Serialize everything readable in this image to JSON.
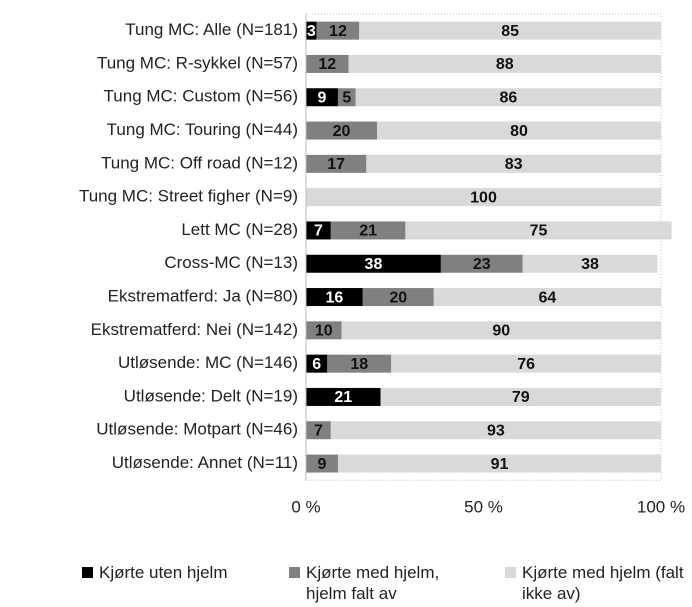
{
  "chart_data": {
    "type": "stacked_bar_horizontal",
    "categories": [
      "Tung MC: Alle (N=181)",
      "Tung MC: R-sykkel (N=57)",
      "Tung MC: Custom (N=56)",
      "Tung MC: Touring (N=44)",
      "Tung MC: Off road (N=12)",
      "Tung MC: Street figher (N=9)",
      "Lett MC (N=28)",
      "Cross-MC (N=13)",
      "Ekstrematferd: Ja (N=80)",
      "Ekstrematferd: Nei (N=142)",
      "Utløsende: MC (N=146)",
      "Utløsende: Delt (N=19)",
      "Utløsende: Motpart (N=46)",
      "Utløsende: Annet (N=11)"
    ],
    "series": [
      {
        "name": "Kjørte uten hjelm",
        "color": "#000000",
        "values": [
          3,
          0,
          9,
          0,
          0,
          0,
          7,
          38,
          16,
          0,
          6,
          21,
          0,
          0
        ]
      },
      {
        "name": "Kjørte med hjelm, hjelm falt av",
        "color": "#808080",
        "values": [
          12,
          12,
          5,
          20,
          17,
          0,
          21,
          23,
          20,
          10,
          18,
          0,
          7,
          9
        ]
      },
      {
        "name": "Kjørte med hjelm (falt ikke av)",
        "color": "#d9d9d9",
        "values": [
          85,
          88,
          86,
          80,
          83,
          100,
          75,
          38,
          64,
          90,
          76,
          79,
          93,
          91
        ]
      }
    ],
    "xlim": [
      0,
      100
    ],
    "xticks": [
      {
        "value": 0,
        "label": "0 %"
      },
      {
        "value": 50,
        "label": "50 %"
      },
      {
        "value": 100,
        "label": "100 %"
      }
    ],
    "legend": "bottom"
  }
}
